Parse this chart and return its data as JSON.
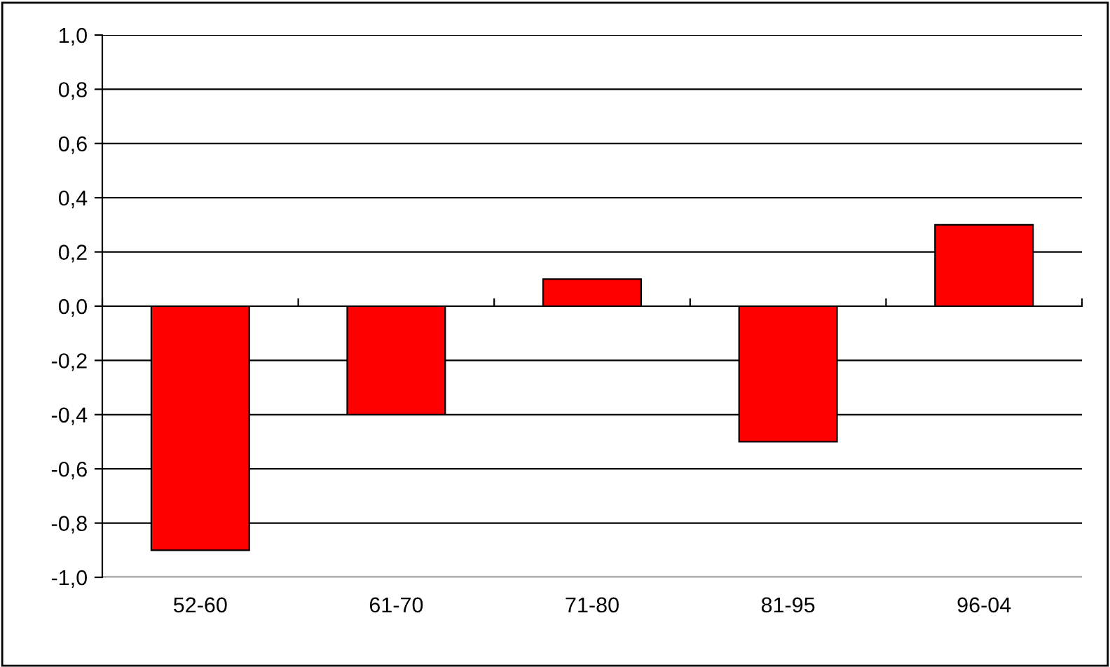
{
  "chart_data": {
    "type": "bar",
    "categories": [
      "52-60",
      "61-70",
      "71-80",
      "81-95",
      "96-04"
    ],
    "values": [
      -0.9,
      -0.4,
      0.1,
      -0.5,
      0.3
    ],
    "color": "#ff0000",
    "ylim": [
      -1.0,
      1.0
    ],
    "yticks": [
      {
        "value": -1.0,
        "label": "-1,0"
      },
      {
        "value": -0.8,
        "label": "-0,8"
      },
      {
        "value": -0.6,
        "label": "-0,6"
      },
      {
        "value": -0.4,
        "label": "-0,4"
      },
      {
        "value": -0.2,
        "label": "-0,2"
      },
      {
        "value": 0.0,
        "label": "0,0"
      },
      {
        "value": 0.2,
        "label": "0,2"
      },
      {
        "value": 0.4,
        "label": "0,4"
      },
      {
        "value": 0.6,
        "label": "0,6"
      },
      {
        "value": 0.8,
        "label": "0,8"
      },
      {
        "value": 1.0,
        "label": "1,0"
      }
    ],
    "grid": "y"
  }
}
